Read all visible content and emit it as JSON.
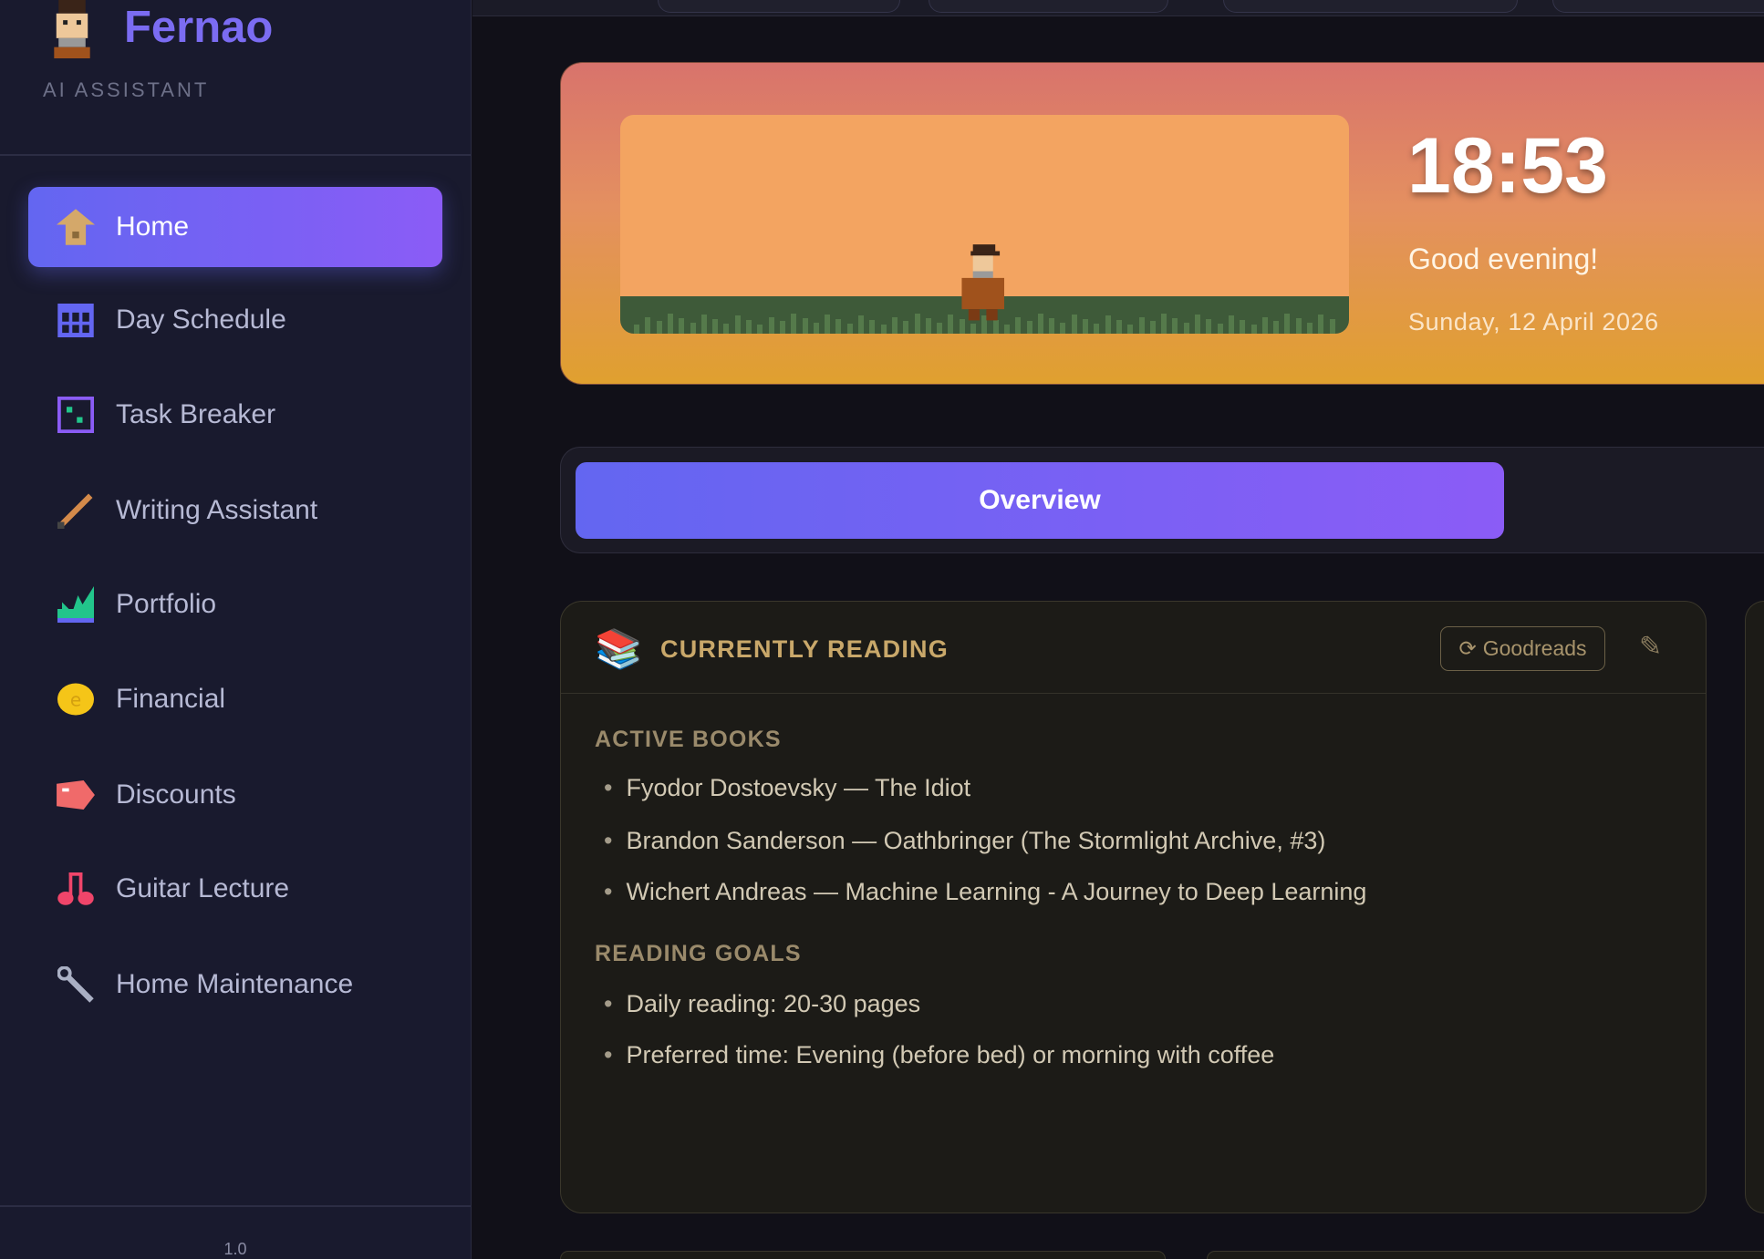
{
  "sidebar": {
    "brand": "Fernao",
    "subtitle": "AI ASSISTANT",
    "items": [
      {
        "label": "Home",
        "icon": "home-icon",
        "active": true
      },
      {
        "label": "Day Schedule",
        "icon": "calendar-icon"
      },
      {
        "label": "Task Breaker",
        "icon": "task-icon"
      },
      {
        "label": "Writing Assistant",
        "icon": "pencil-icon"
      },
      {
        "label": "Portfolio",
        "icon": "chart-icon"
      },
      {
        "label": "Financial",
        "icon": "coin-icon"
      },
      {
        "label": "Discounts",
        "icon": "tag-icon"
      },
      {
        "label": "Guitar Lecture",
        "icon": "music-icon"
      },
      {
        "label": "Home Maintenance",
        "icon": "wrench-icon"
      }
    ],
    "version": "1.0"
  },
  "hero": {
    "time": "18:53",
    "greeting": "Good evening!",
    "date": "Sunday, 12 April 2026"
  },
  "tabs": {
    "active": "Overview"
  },
  "reading": {
    "title": "CURRENTLY READING",
    "icon": "books-emoji",
    "goodreads_label": "Goodreads",
    "active_heading": "ACTIVE BOOKS",
    "books": [
      "Fyodor Dostoevsky — The Idiot",
      "Brandon Sanderson — Oathbringer (The Stormlight Archive, #3)",
      "Wichert Andreas — Machine Learning - A Journey to Deep Learning"
    ],
    "goals_heading": "READING GOALS",
    "goals": [
      "Daily reading: 20-30 pages",
      "Preferred time: Evening (before bed) or morning with coffee"
    ]
  },
  "colors": {
    "accent": "#6366f1",
    "accent2": "#8b5cf6",
    "gold": "#c9a86a"
  }
}
